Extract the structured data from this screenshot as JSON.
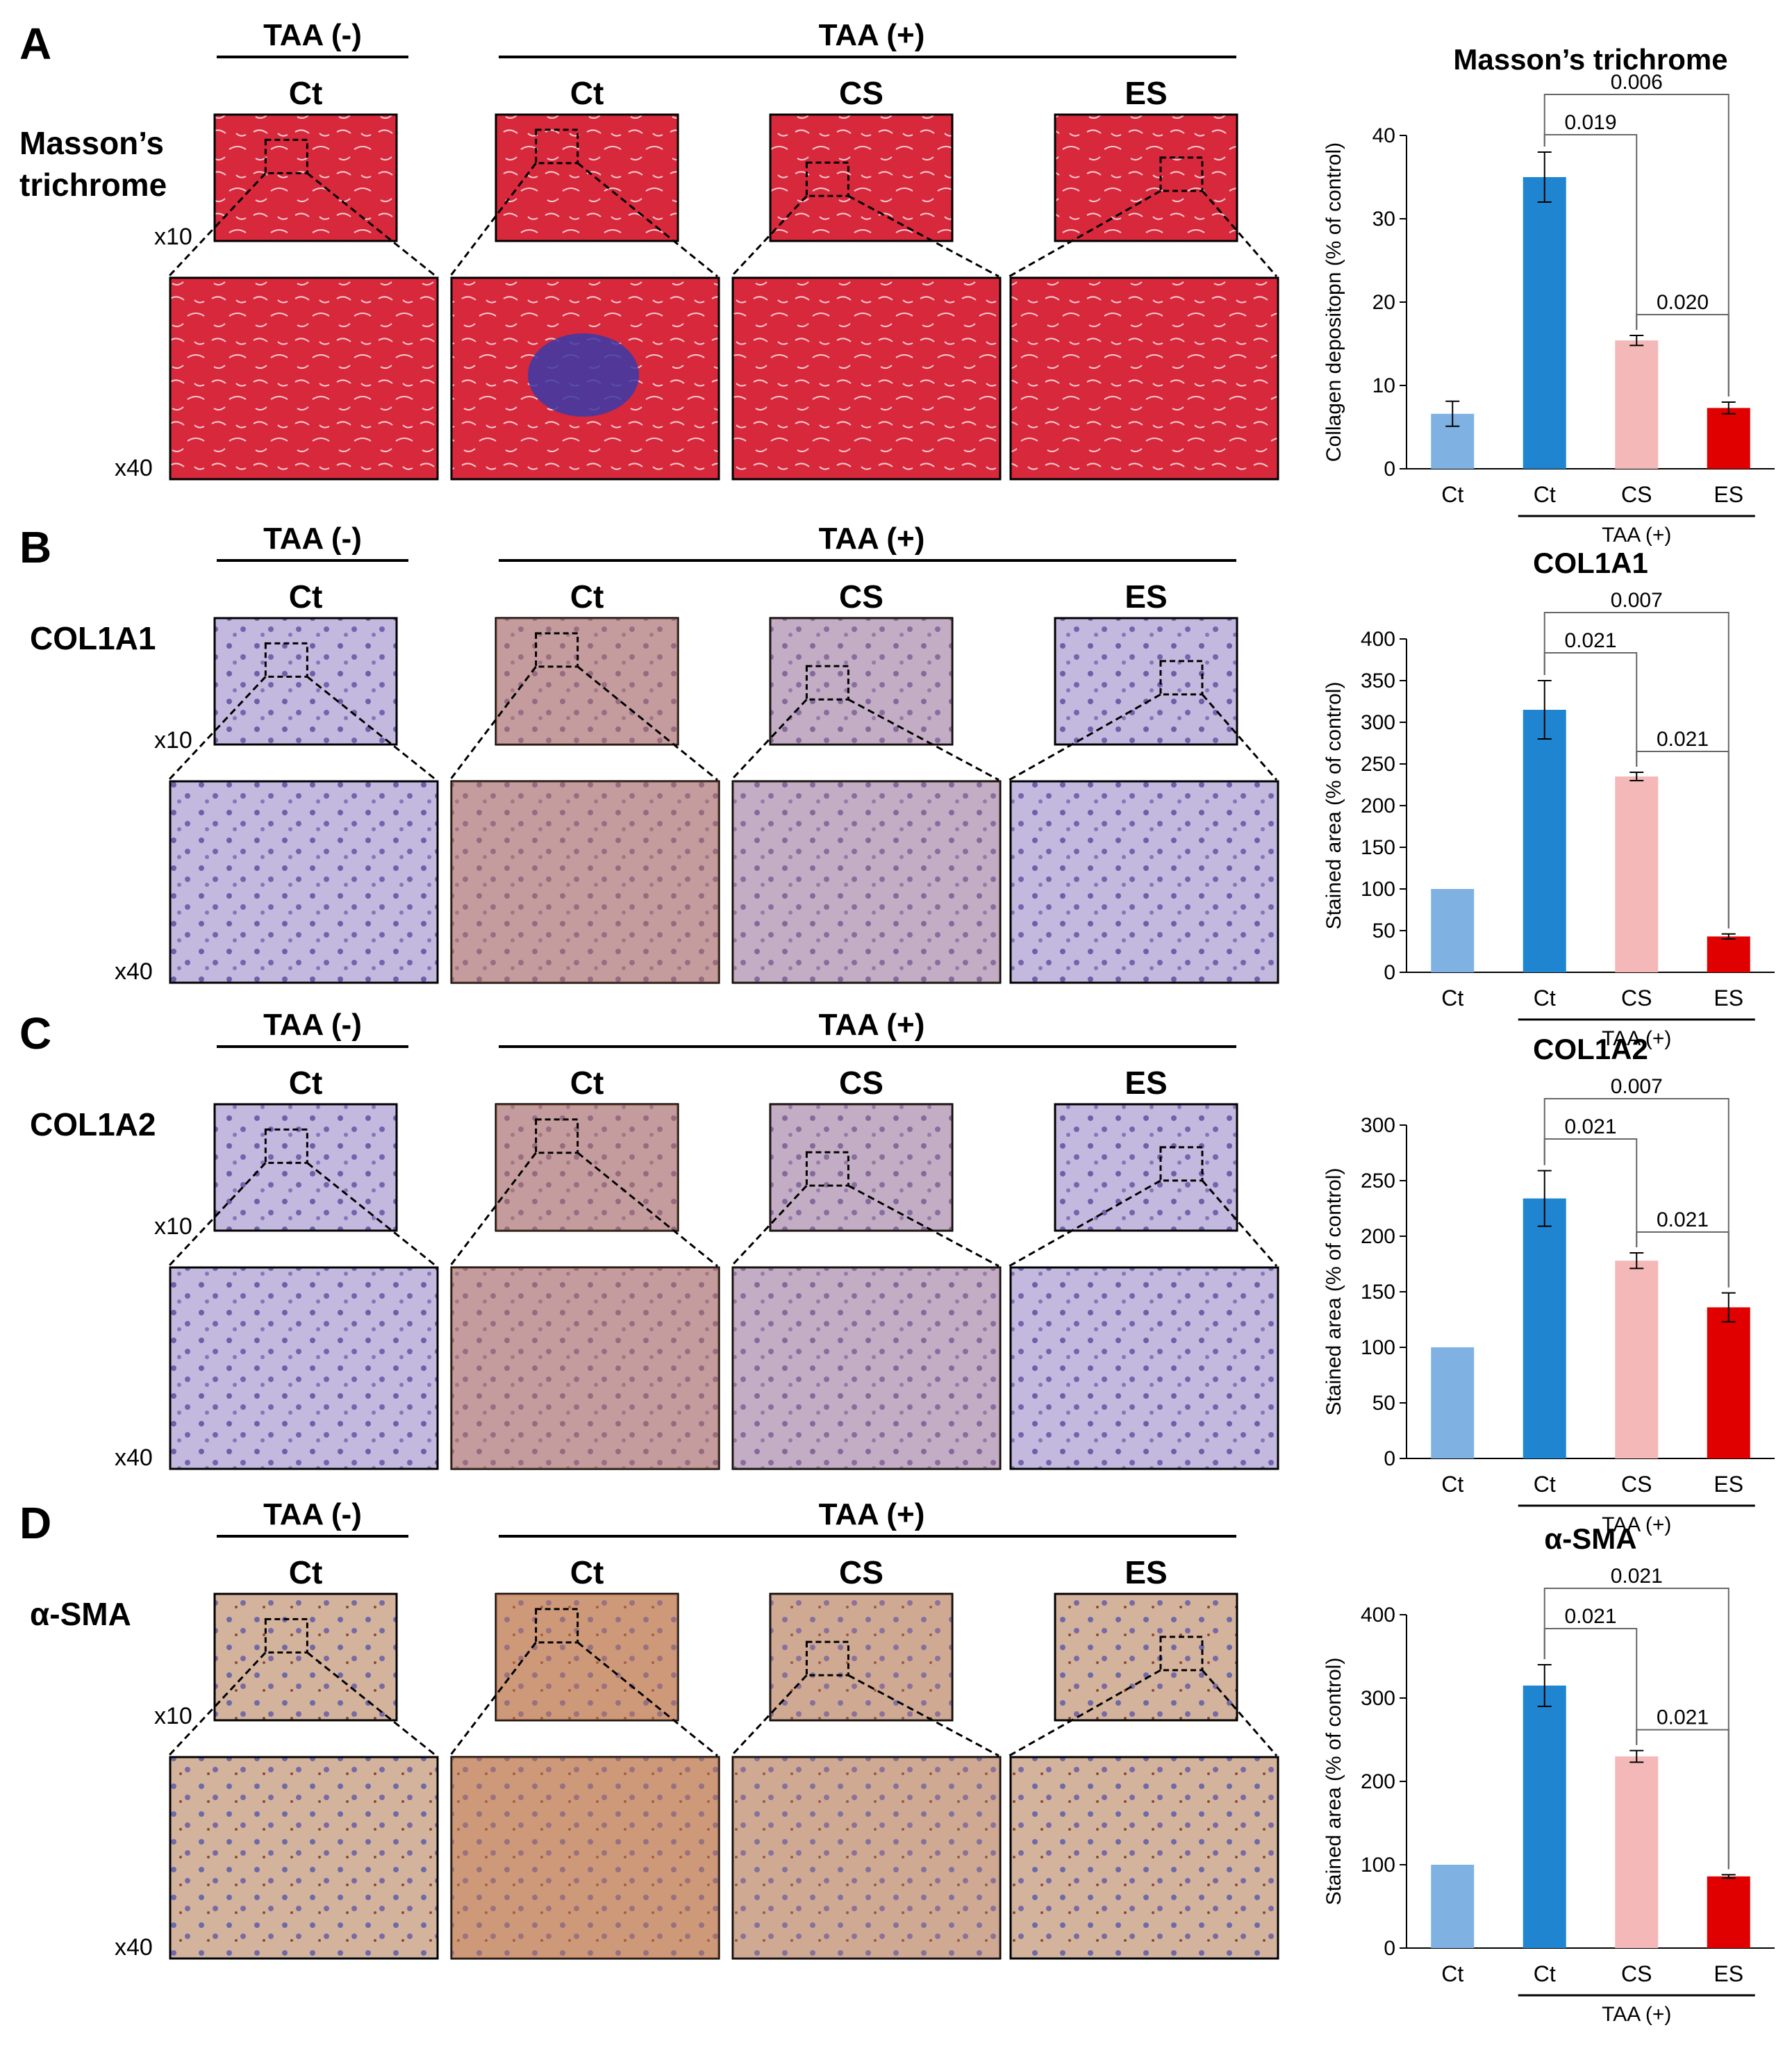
{
  "colors": {
    "Ct_neg": "#7fb2e3",
    "Ct_pos": "#1f85d0",
    "CS": "#f4b8b8",
    "ES": "#e00000",
    "masson_bg": "#d8283c",
    "col_bg": "#b9acd6",
    "sma_bg": "#c9a890"
  },
  "group_labels": {
    "neg": "TAA (-)",
    "pos": "TAA (+)"
  },
  "column_labels": [
    "Ct",
    "Ct",
    "CS",
    "ES"
  ],
  "magnifications": {
    "low": "x10",
    "high": "x40"
  },
  "panels": [
    {
      "letter": "A",
      "row_label": [
        "Masson’s",
        "trichrome"
      ],
      "stain": "masson",
      "chart_data": {
        "type": "bar",
        "title": "Masson’s trichrome",
        "ylabel": "Collagen depositopn (% of control)",
        "ylim": [
          0,
          40
        ],
        "yticks": [
          0,
          10,
          20,
          30,
          40
        ],
        "categories": [
          "Ct",
          "Ct",
          "CS",
          "ES"
        ],
        "group_label": "TAA (+)",
        "values": [
          6.6,
          35,
          15.4,
          7.3
        ],
        "errors": [
          1.5,
          3,
          0.6,
          0.7
        ],
        "comparisons": [
          {
            "from": 1,
            "to": 2,
            "p": "0.019"
          },
          {
            "from": 1,
            "to": 3,
            "p": "0.006"
          },
          {
            "from": 2,
            "to": 3,
            "p": "0.020"
          }
        ]
      }
    },
    {
      "letter": "B",
      "row_label": [
        "COL1A1"
      ],
      "stain": "col",
      "chart_data": {
        "type": "bar",
        "title": "COL1A1",
        "ylabel": "Stained area (% of control)",
        "ylim": [
          0,
          400
        ],
        "yticks": [
          0,
          50,
          100,
          150,
          200,
          250,
          300,
          350,
          400
        ],
        "categories": [
          "Ct",
          "Ct",
          "CS",
          "ES"
        ],
        "group_label": "TAA (+)",
        "values": [
          100,
          315,
          235,
          43
        ],
        "errors": [
          0,
          35,
          5,
          3
        ],
        "comparisons": [
          {
            "from": 1,
            "to": 2,
            "p": "0.021"
          },
          {
            "from": 1,
            "to": 3,
            "p": "0.007"
          },
          {
            "from": 2,
            "to": 3,
            "p": "0.021"
          }
        ]
      }
    },
    {
      "letter": "C",
      "row_label": [
        "COL1A2"
      ],
      "stain": "col",
      "chart_data": {
        "type": "bar",
        "title": "COL1A2",
        "ylabel": "Stained area (% of control)",
        "ylim": [
          0,
          300
        ],
        "yticks": [
          0,
          50,
          100,
          150,
          200,
          250,
          300
        ],
        "categories": [
          "Ct",
          "Ct",
          "CS",
          "ES"
        ],
        "group_label": "TAA (+)",
        "values": [
          100,
          234,
          178,
          136
        ],
        "errors": [
          0,
          25,
          7,
          13
        ],
        "comparisons": [
          {
            "from": 1,
            "to": 2,
            "p": "0.021"
          },
          {
            "from": 1,
            "to": 3,
            "p": "0.007"
          },
          {
            "from": 2,
            "to": 3,
            "p": "0.021"
          }
        ]
      }
    },
    {
      "letter": "D",
      "row_label": [
        "α-SMA"
      ],
      "stain": "sma",
      "chart_data": {
        "type": "bar",
        "title": "α-SMA",
        "ylabel": "Stained area (% of control)",
        "ylim": [
          0,
          400
        ],
        "yticks": [
          0,
          100,
          200,
          300,
          400
        ],
        "categories": [
          "Ct",
          "Ct",
          "CS",
          "ES"
        ],
        "group_label": "TAA (+)",
        "values": [
          100,
          315,
          230,
          86
        ],
        "errors": [
          0,
          25,
          7,
          2
        ],
        "comparisons": [
          {
            "from": 1,
            "to": 2,
            "p": "0.021"
          },
          {
            "from": 1,
            "to": 3,
            "p": "0.021"
          },
          {
            "from": 2,
            "to": 3,
            "p": "0.021"
          }
        ]
      }
    }
  ]
}
